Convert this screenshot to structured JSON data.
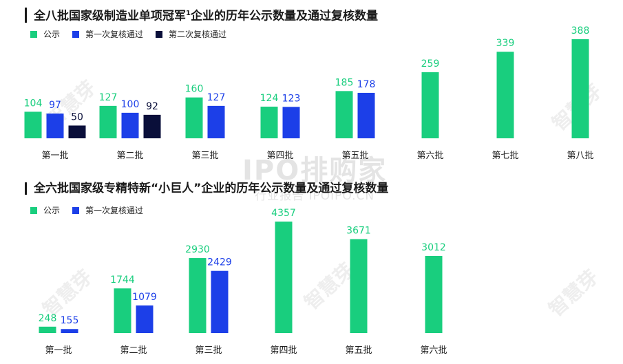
{
  "charts": [
    {
      "title": "全八批国家级制造业单项冠军",
      "title_sup": "1",
      "title_rest": "企业的历年公示数量及通过复核数量"
    },
    {
      "title": "全六批国家级专精特新“小巨人”企业的历年公示数量及通过复核数量"
    }
  ],
  "watermarks": {
    "side": "智慧芽",
    "center_big": "IPO排购家",
    "center_small": "行业报告 IPOIPO.CN"
  },
  "colors": {
    "s1": "#19CE7E",
    "s2": "#1C3FE8",
    "s3": "#0A0F3A"
  },
  "chart_data": [
    {
      "type": "bar",
      "title": "全八批国家级制造业单项冠军1企业的历年公示数量及通过复核数量",
      "categories": [
        "第一批",
        "第二批",
        "第三批",
        "第四批",
        "第五批",
        "第六批",
        "第七批",
        "第八批"
      ],
      "series": [
        {
          "name": "公示",
          "color": "#19CE7E",
          "values": [
            104,
            127,
            160,
            124,
            185,
            259,
            339,
            388
          ]
        },
        {
          "name": "第一次复核通过",
          "color": "#1C3FE8",
          "values": [
            97,
            100,
            127,
            123,
            178,
            null,
            null,
            null
          ]
        },
        {
          "name": "第二次复核通过",
          "color": "#0A0F3A",
          "values": [
            50,
            92,
            null,
            null,
            null,
            null,
            null,
            null
          ]
        }
      ],
      "legend": "top-left",
      "grid": false,
      "ylim": [
        0,
        400
      ]
    },
    {
      "type": "bar",
      "title": "全六批国家级专精特新“小巨人”企业的历年公示数量及通过复核数量",
      "categories": [
        "第一批",
        "第二批",
        "第三批",
        "第四批",
        "第五批",
        "第六批"
      ],
      "series": [
        {
          "name": "公示",
          "color": "#19CE7E",
          "values": [
            248,
            1744,
            2930,
            4357,
            3671,
            3012
          ]
        },
        {
          "name": "第一次复核通过",
          "color": "#1C3FE8",
          "values": [
            155,
            1079,
            2429,
            null,
            null,
            null
          ]
        }
      ],
      "legend": "top-left",
      "grid": false,
      "ylim": [
        0,
        4400
      ]
    }
  ]
}
